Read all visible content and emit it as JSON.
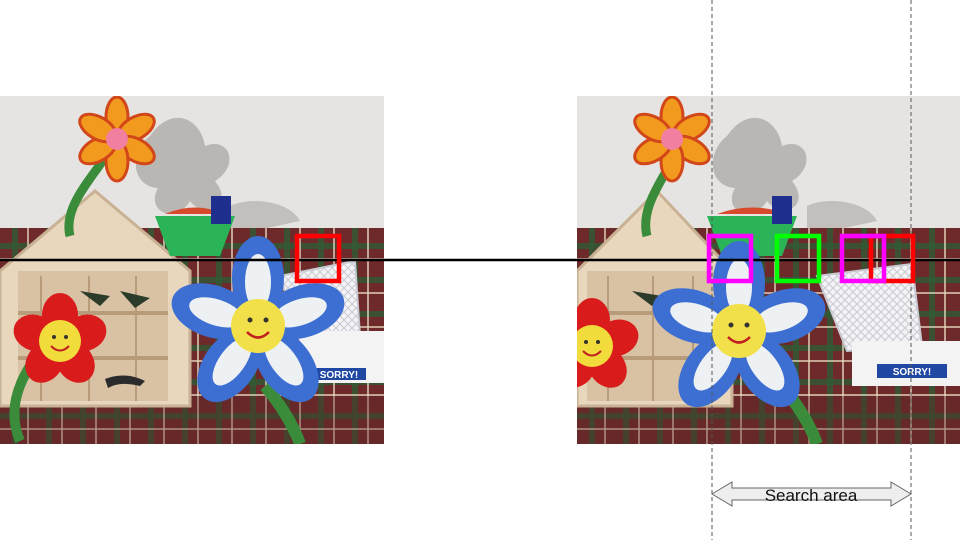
{
  "diagram": {
    "search_area_label": "Search area",
    "colors": {
      "reference_window": "#ff0000",
      "candidate_a": "#ff00ff",
      "candidate_b": "#00ff00",
      "candidate_c": "#ff00ff",
      "candidate_d": "#ff0000",
      "scanline": "#000000",
      "search_bounds": "#555555"
    },
    "images": [
      {
        "role": "left-image",
        "scene": "toy flowers, dollhouse, green bucket, basket, SORRY! box"
      },
      {
        "role": "right-image",
        "scene": "same scene viewed from a shifted camera"
      }
    ],
    "box_text": "SORRY!"
  }
}
